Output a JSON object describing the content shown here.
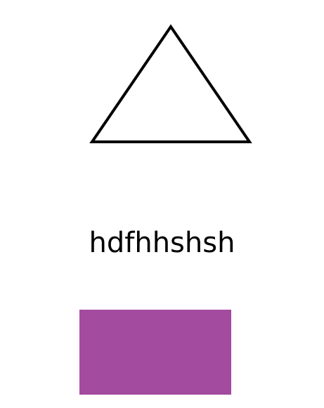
{
  "text": "hdfhhshsh",
  "shapes": {
    "triangle": {
      "stroke_color": "#000000",
      "fill_color": "#ffffff"
    },
    "rectangle": {
      "fill_color": "#a34b9e"
    }
  }
}
